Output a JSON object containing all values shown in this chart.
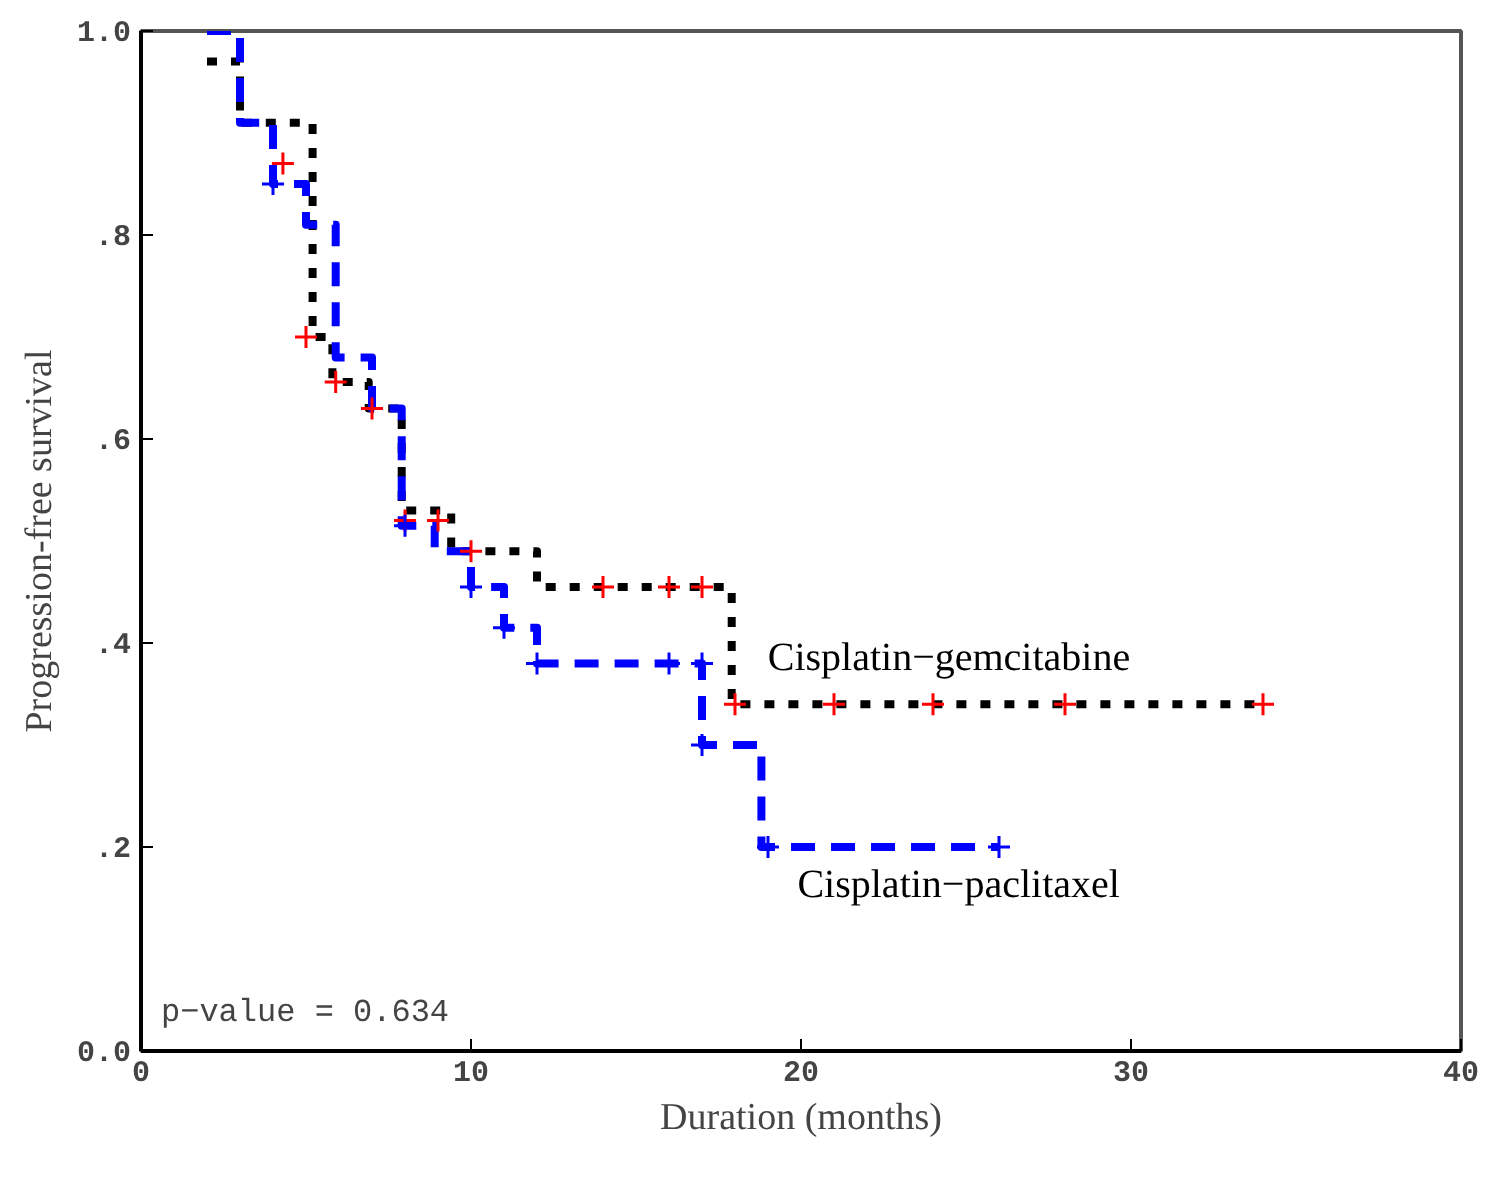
{
  "chart_data": {
    "type": "step",
    "xlabel": "Duration (months)",
    "ylabel": "Progression-free survival",
    "xlim": [
      0,
      40
    ],
    "xticks": [
      0,
      10,
      20,
      30,
      40
    ],
    "ylim": [
      0,
      1
    ],
    "yticks": [
      {
        "value": 0,
        "label": "0.0"
      },
      {
        "value": 0.2,
        "label": ".2"
      },
      {
        "value": 0.4,
        "label": ".4"
      },
      {
        "value": 0.6,
        "label": ".6"
      },
      {
        "value": 0.8,
        "label": ".8"
      },
      {
        "value": 1,
        "label": "1.0"
      }
    ],
    "grid": false,
    "annotations": [
      "p−value = 0.634"
    ],
    "series": [
      {
        "name": "Cisplatin−gemcitabine",
        "line_style": "dotted",
        "marker": "none",
        "color": "#000000",
        "x": [
          2,
          3,
          5.2,
          5.8,
          6.9,
          7.9,
          9.4,
          12,
          17.9,
          34
        ],
        "values": [
          0.97,
          0.91,
          0.7,
          0.656,
          0.63,
          0.53,
          0.49,
          0.455,
          0.34,
          0.34
        ]
      },
      {
        "name": "Cisplatin−paclitaxel",
        "line_style": "dashed",
        "marker": "none",
        "color": "#0000ff",
        "x": [
          2,
          3,
          4,
          5,
          5.9,
          7,
          7.9,
          8.9,
          10,
          11,
          12,
          17,
          18.8,
          26
        ],
        "values": [
          1.0,
          0.91,
          0.85,
          0.81,
          0.68,
          0.63,
          0.515,
          0.49,
          0.455,
          0.415,
          0.38,
          0.3,
          0.2,
          0.2
        ]
      },
      {
        "type": "scatter",
        "marker": "cross",
        "color": "#ff0000",
        "x": [
          4.3,
          5,
          5.9,
          7,
          8,
          9,
          10,
          14,
          16,
          17,
          18,
          21,
          24,
          28,
          34
        ],
        "values": [
          0.87,
          0.7,
          0.656,
          0.63,
          0.52,
          0.52,
          0.49,
          0.455,
          0.455,
          0.455,
          0.34,
          0.34,
          0.34,
          0.34,
          0.34
        ]
      },
      {
        "type": "scatter",
        "marker": "cross",
        "color": "#0000ff",
        "x": [
          4,
          8,
          10,
          11,
          12,
          16,
          17,
          17,
          19,
          26
        ],
        "values": [
          0.85,
          0.515,
          0.455,
          0.415,
          0.38,
          0.38,
          0.38,
          0.3,
          0.2,
          0.2
        ]
      }
    ]
  }
}
